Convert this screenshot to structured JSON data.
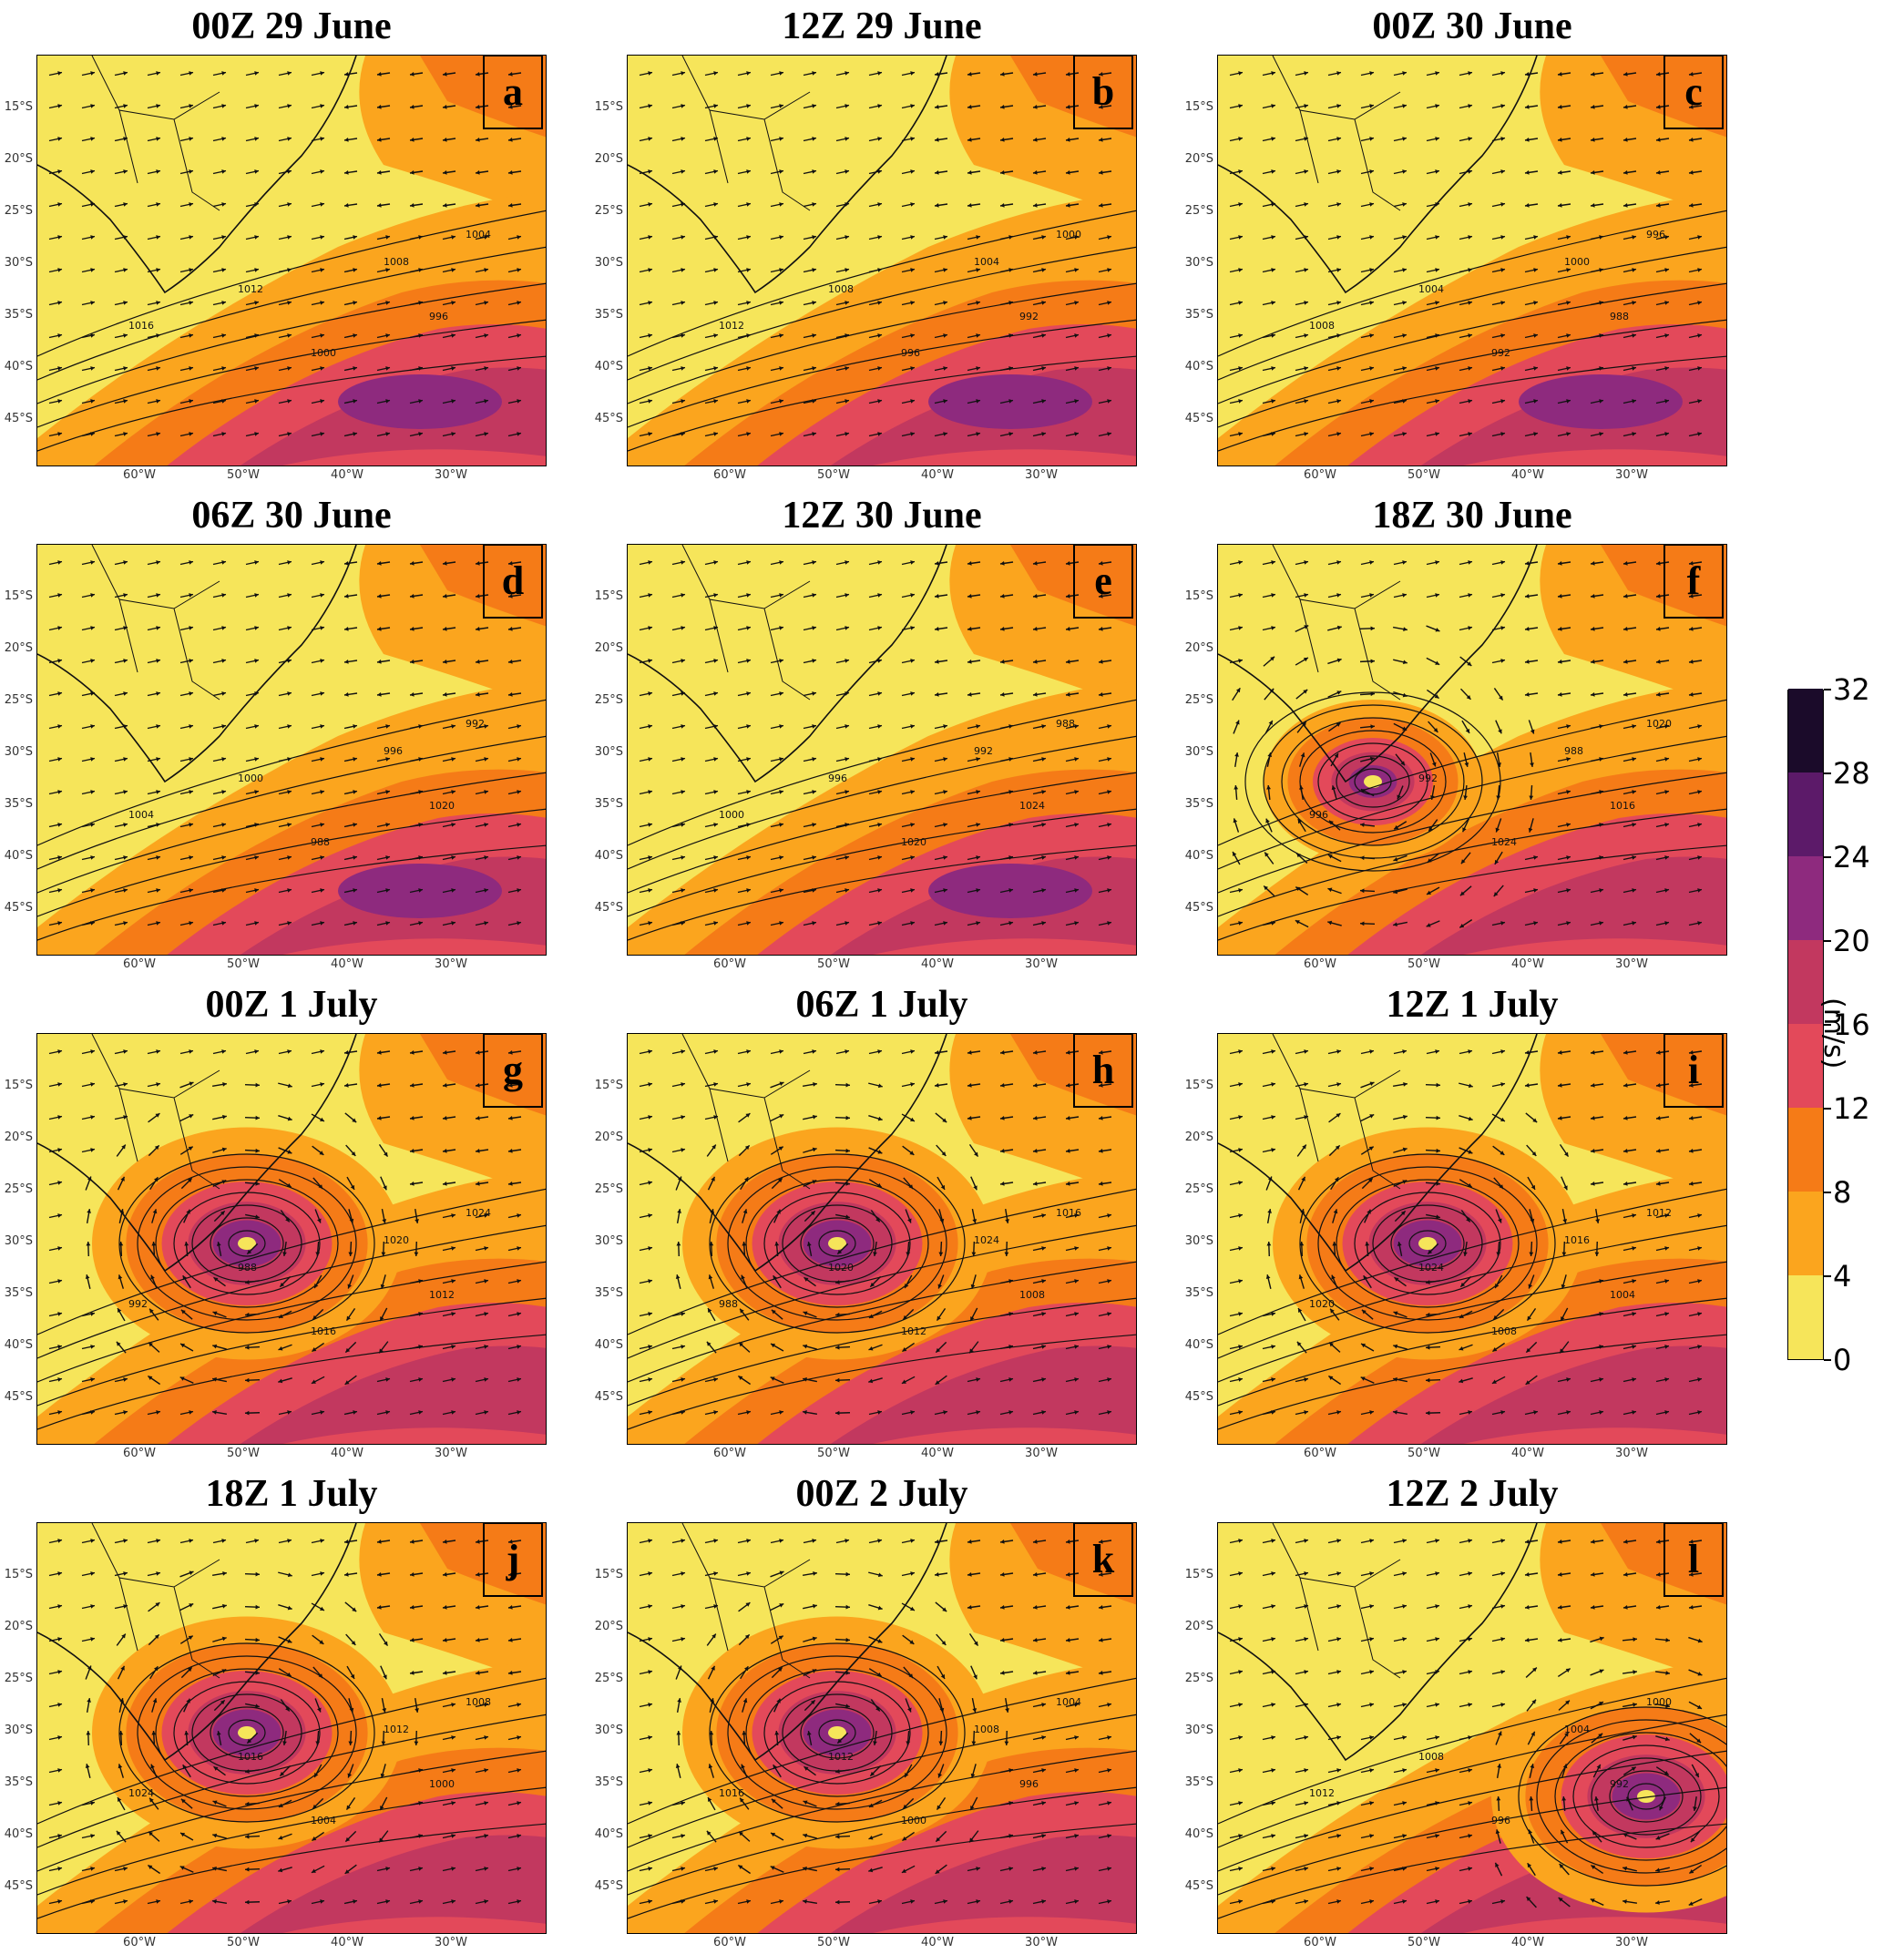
{
  "figure": {
    "panels": [
      {
        "title": "00Z 29 June",
        "letter": "a",
        "low": null
      },
      {
        "title": "12Z 29 June",
        "letter": "b",
        "low": null
      },
      {
        "title": "00Z 30 June",
        "letter": "c",
        "low": null
      },
      {
        "title": "06Z 30 June",
        "letter": "d",
        "low": null
      },
      {
        "title": "12Z 30 June",
        "letter": "e",
        "low": null
      },
      {
        "title": "18Z 30 June",
        "letter": "f",
        "low": "weak"
      },
      {
        "title": "00Z 1 July",
        "letter": "g",
        "low": "strong"
      },
      {
        "title": "06Z 1 July",
        "letter": "h",
        "low": "strong"
      },
      {
        "title": "12Z 1 July",
        "letter": "i",
        "low": "strong"
      },
      {
        "title": "18Z 1 July",
        "letter": "j",
        "low": "strong"
      },
      {
        "title": "00Z 2 July",
        "letter": "k",
        "low": "strong"
      },
      {
        "title": "12Z 2 July",
        "letter": "l",
        "low": "east"
      }
    ],
    "lat_labels": [
      "15°S",
      "20°S",
      "25°S",
      "30°S",
      "35°S",
      "40°S",
      "45°S"
    ],
    "lon_labels": [
      "60°W",
      "50°W",
      "40°W",
      "30°W"
    ],
    "isobar_labels": [
      "1016",
      "1012",
      "1008",
      "1004",
      "1000",
      "996",
      "992",
      "988",
      "1020",
      "1024"
    ],
    "colorbar": {
      "unit": "(m/s)",
      "ticks": [
        "0",
        "4",
        "8",
        "12",
        "16",
        "20",
        "24",
        "28",
        "32"
      ],
      "colors": [
        "#f6e55a",
        "#fba51e",
        "#f57b17",
        "#e3495a",
        "#c2385f",
        "#8e2a7e",
        "#5c1a69",
        "#1b0b2a"
      ]
    }
  }
}
